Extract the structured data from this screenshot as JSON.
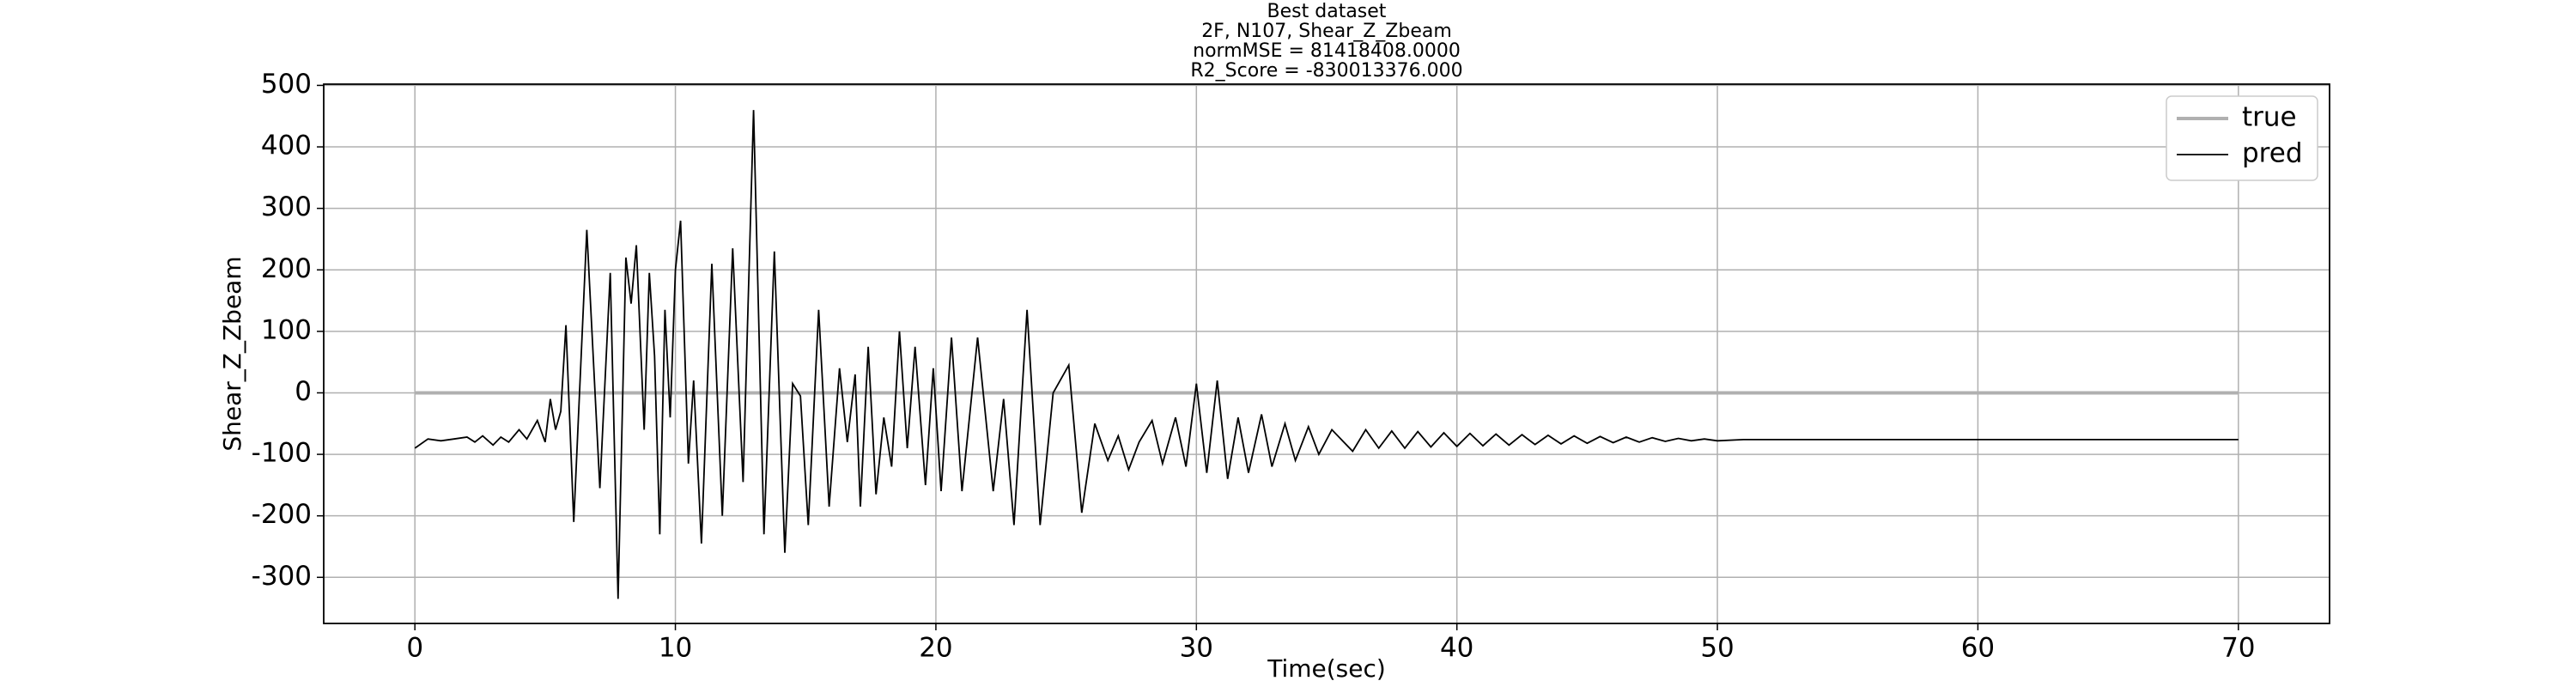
{
  "chart_data": {
    "type": "line",
    "title": [
      "Best dataset",
      "2F, N107, Shear_Z_Zbeam",
      "normMSE = 81418408.0000",
      "R2_Score = -830013376.000"
    ],
    "xlabel": "Time(sec)",
    "ylabel": "Shear_Z_Zbeam",
    "xlim": [
      -3.5,
      73.5
    ],
    "ylim": [
      -375,
      502
    ],
    "xticks": [
      0,
      10,
      20,
      30,
      40,
      50,
      60,
      70
    ],
    "yticks": [
      -300,
      -200,
      -100,
      0,
      100,
      200,
      300,
      400,
      500
    ],
    "grid": true,
    "legend": "upper right",
    "series": [
      {
        "name": "true",
        "color": "#b0b0b0",
        "x": [
          0,
          70
        ],
        "values": [
          0,
          0
        ]
      },
      {
        "name": "pred",
        "color": "#000000",
        "x": [
          0,
          0.5,
          1,
          1.5,
          2,
          2.3,
          2.6,
          3,
          3.3,
          3.6,
          4,
          4.3,
          4.7,
          5,
          5.2,
          5.4,
          5.6,
          5.8,
          6.1,
          6.6,
          7.1,
          7.5,
          7.8,
          8.1,
          8.3,
          8.5,
          8.8,
          9.0,
          9.2,
          9.4,
          9.6,
          9.8,
          10.0,
          10.2,
          10.5,
          10.7,
          11.0,
          11.4,
          11.8,
          12.2,
          12.6,
          13.0,
          13.4,
          13.8,
          14.2,
          14.5,
          14.8,
          15.1,
          15.5,
          15.9,
          16.3,
          16.6,
          16.9,
          17.1,
          17.4,
          17.7,
          18.0,
          18.3,
          18.6,
          18.9,
          19.2,
          19.6,
          19.9,
          20.2,
          20.6,
          21.0,
          21.6,
          22.2,
          22.6,
          23.0,
          23.5,
          24.0,
          24.5,
          25.1,
          25.6,
          26.1,
          26.6,
          27.0,
          27.4,
          27.8,
          28.3,
          28.7,
          29.2,
          29.6,
          30.0,
          30.4,
          30.8,
          31.2,
          31.6,
          32.0,
          32.5,
          32.9,
          33.4,
          33.8,
          34.3,
          34.7,
          35.2,
          36,
          36.5,
          37,
          37.5,
          38,
          38.5,
          39,
          39.5,
          40,
          40.5,
          41,
          41.5,
          42,
          42.5,
          43,
          43.5,
          44,
          44.5,
          45,
          45.5,
          46,
          46.5,
          47,
          47.5,
          48,
          48.5,
          49,
          49.5,
          50,
          51,
          55,
          60,
          70
        ],
        "values": [
          -90,
          -75,
          -78,
          -75,
          -72,
          -80,
          -70,
          -85,
          -72,
          -80,
          -60,
          -75,
          -45,
          -80,
          -10,
          -60,
          -30,
          110,
          -210,
          265,
          -155,
          195,
          -335,
          220,
          145,
          240,
          -60,
          195,
          60,
          -230,
          135,
          -40,
          200,
          280,
          -115,
          20,
          -245,
          210,
          -200,
          235,
          -145,
          460,
          -230,
          230,
          -260,
          15,
          -5,
          -215,
          135,
          -185,
          40,
          -80,
          30,
          -185,
          75,
          -165,
          -40,
          -120,
          100,
          -90,
          75,
          -150,
          40,
          -160,
          90,
          -160,
          90,
          -160,
          -10,
          -215,
          135,
          -215,
          0,
          45,
          -195,
          -50,
          -110,
          -70,
          -125,
          -80,
          -45,
          -115,
          -40,
          -120,
          15,
          -130,
          20,
          -140,
          -40,
          -130,
          -35,
          -120,
          -50,
          -110,
          -55,
          -100,
          -60,
          -95,
          -60,
          -90,
          -62,
          -90,
          -63,
          -88,
          -65,
          -87,
          -66,
          -86,
          -67,
          -85,
          -68,
          -84,
          -69,
          -83,
          -70,
          -82,
          -71,
          -81,
          -72,
          -80,
          -73,
          -79,
          -74,
          -78,
          -75,
          -78,
          -76,
          -76,
          -76,
          -76
        ]
      }
    ]
  }
}
